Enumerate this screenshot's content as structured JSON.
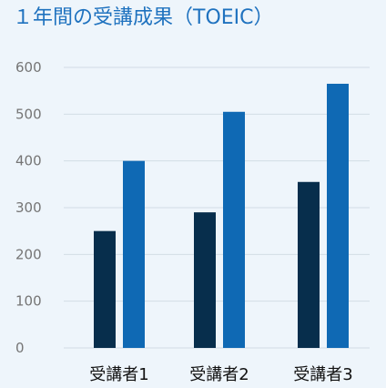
{
  "page": {
    "title": "１年間の受講成果（TOEIC）"
  },
  "chart_data": {
    "type": "bar",
    "title": "１年間の受講成果（TOEIC）",
    "categories": [
      "受講者1",
      "受講者2",
      "受講者3"
    ],
    "series": [
      {
        "values": [
          250,
          290,
          355
        ],
        "color": "#072e4c"
      },
      {
        "values": [
          400,
          505,
          565
        ],
        "color": "#0f69b4"
      }
    ],
    "yticks": [
      0,
      100,
      200,
      300,
      400,
      500,
      600
    ],
    "ylim": [
      0,
      600
    ],
    "grid": true,
    "legend": "none"
  }
}
